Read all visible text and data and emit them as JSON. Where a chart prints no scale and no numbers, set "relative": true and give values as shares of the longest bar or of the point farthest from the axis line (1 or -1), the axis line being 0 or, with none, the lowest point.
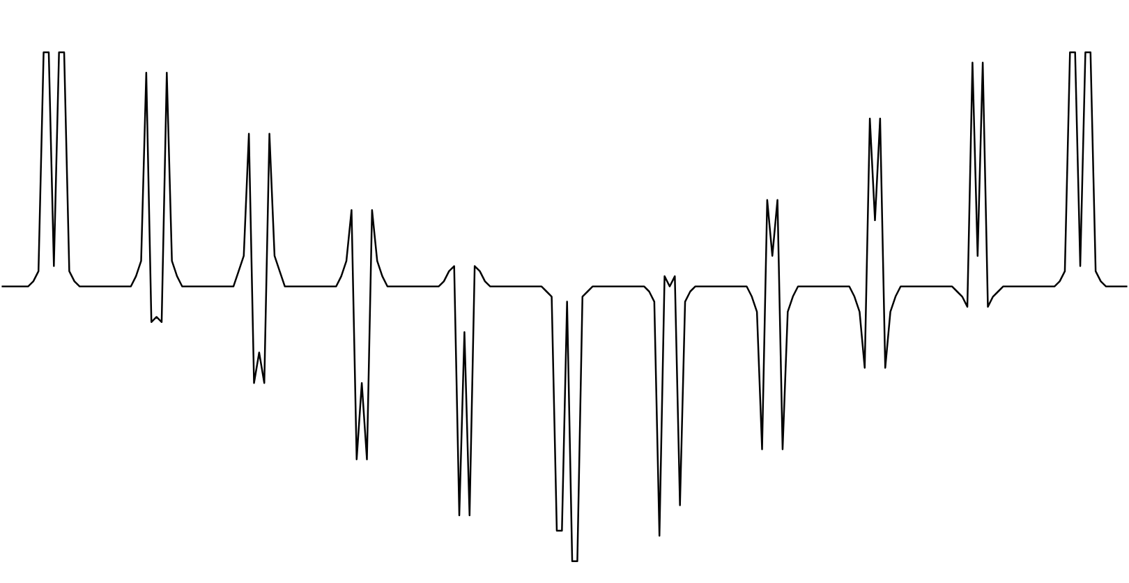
{
  "chart_data": {
    "type": "line",
    "relative": true,
    "marker": "none",
    "line_style": "solid",
    "categories": [
      null,
      null,
      null,
      null,
      null,
      null,
      null,
      null,
      null,
      null,
      null,
      null,
      null,
      null,
      null,
      null,
      null,
      null,
      null,
      null,
      null,
      null,
      null,
      null,
      null,
      null,
      null,
      null,
      null,
      null,
      null,
      null,
      null,
      null,
      null,
      null,
      null,
      null,
      null,
      null,
      null,
      null,
      null,
      null,
      null,
      null,
      null,
      null,
      null,
      null,
      null,
      null,
      null,
      null,
      null,
      null,
      null,
      null,
      null,
      null,
      null,
      null,
      null,
      null,
      null,
      null,
      null,
      null,
      null,
      null,
      null,
      null,
      null,
      null,
      null,
      null,
      null,
      null,
      null,
      null,
      null,
      null,
      null,
      null,
      null,
      null,
      null,
      null,
      null,
      null,
      null,
      null,
      null,
      null,
      null,
      null,
      null,
      null,
      null,
      null,
      null,
      null,
      null,
      null,
      null,
      null,
      null,
      null,
      null,
      null,
      null,
      null,
      null,
      null,
      null,
      null,
      null,
      null,
      null,
      null,
      null,
      null,
      null,
      null,
      null,
      null,
      null,
      null,
      null,
      null,
      null,
      null,
      null,
      null,
      null,
      null,
      null,
      null,
      null,
      null,
      null,
      null,
      null,
      null,
      null,
      null,
      null,
      null,
      null,
      null,
      null,
      null,
      null,
      null,
      null,
      null,
      null,
      null,
      null,
      null,
      null,
      null,
      null,
      null,
      null,
      null,
      null,
      null,
      null,
      null,
      null,
      null,
      null,
      null,
      null,
      null,
      null,
      null,
      null,
      null,
      null,
      null,
      null,
      null,
      null,
      null,
      null,
      null,
      null,
      null,
      null,
      null,
      null,
      null,
      null,
      null,
      null,
      null,
      null,
      null,
      null,
      null,
      null,
      null,
      null,
      null,
      null,
      null,
      null,
      null,
      null,
      null,
      null,
      null,
      null,
      null,
      null,
      null,
      null,
      null
    ],
    "series": [
      {
        "color": "#000000",
        "values": [
          0.54,
          0.54,
          0.54,
          0.54,
          0.54,
          0.54,
          0.55,
          0.57,
          1,
          1,
          0.58,
          1,
          1,
          0.57,
          0.55,
          0.54,
          0.54,
          0.54,
          0.54,
          0.54,
          0.54,
          0.54,
          0.54,
          0.54,
          0.54,
          0.54,
          0.56,
          0.59,
          0.96,
          0.47,
          0.48,
          0.47,
          0.96,
          0.59,
          0.56,
          0.54,
          0.54,
          0.54,
          0.54,
          0.54,
          0.54,
          0.54,
          0.54,
          0.54,
          0.54,
          0.54,
          0.57,
          0.6,
          0.84,
          0.35,
          0.41,
          0.35,
          0.84,
          0.6,
          0.57,
          0.54,
          0.54,
          0.54,
          0.54,
          0.54,
          0.54,
          0.54,
          0.54,
          0.54,
          0.54,
          0.54,
          0.56,
          0.59,
          0.69,
          0.2,
          0.35,
          0.2,
          0.69,
          0.59,
          0.56,
          0.54,
          0.54,
          0.54,
          0.54,
          0.54,
          0.54,
          0.54,
          0.54,
          0.54,
          0.54,
          0.54,
          0.55,
          0.57,
          0.58,
          0.09,
          0.45,
          0.09,
          0.58,
          0.57,
          0.55,
          0.54,
          0.54,
          0.54,
          0.54,
          0.54,
          0.54,
          0.54,
          0.54,
          0.54,
          0.54,
          0.54,
          0.53,
          0.52,
          0.06,
          0.06,
          0.51,
          0,
          0,
          0.52,
          0.53,
          0.54,
          0.54,
          0.54,
          0.54,
          0.54,
          0.54,
          0.54,
          0.54,
          0.54,
          0.54,
          0.54,
          0.53,
          0.51,
          0.05,
          0.56,
          0.54,
          0.56,
          0.11,
          0.51,
          0.53,
          0.54,
          0.54,
          0.54,
          0.54,
          0.54,
          0.54,
          0.54,
          0.54,
          0.54,
          0.54,
          0.54,
          0.52,
          0.49,
          0.22,
          0.71,
          0.6,
          0.71,
          0.22,
          0.49,
          0.52,
          0.54,
          0.54,
          0.54,
          0.54,
          0.54,
          0.54,
          0.54,
          0.54,
          0.54,
          0.54,
          0.54,
          0.52,
          0.49,
          0.38,
          0.87,
          0.67,
          0.87,
          0.38,
          0.49,
          0.52,
          0.54,
          0.54,
          0.54,
          0.54,
          0.54,
          0.54,
          0.54,
          0.54,
          0.54,
          0.54,
          0.54,
          0.53,
          0.52,
          0.5,
          0.98,
          0.6,
          0.98,
          0.5,
          0.52,
          0.53,
          0.54,
          0.54,
          0.54,
          0.54,
          0.54,
          0.54,
          0.54,
          0.54,
          0.54,
          0.54,
          0.54,
          0.55,
          0.57,
          1,
          1,
          0.58,
          1,
          1,
          0.57,
          0.55,
          0.54,
          0.54,
          0.54,
          0.54,
          0.54
        ]
      }
    ]
  }
}
